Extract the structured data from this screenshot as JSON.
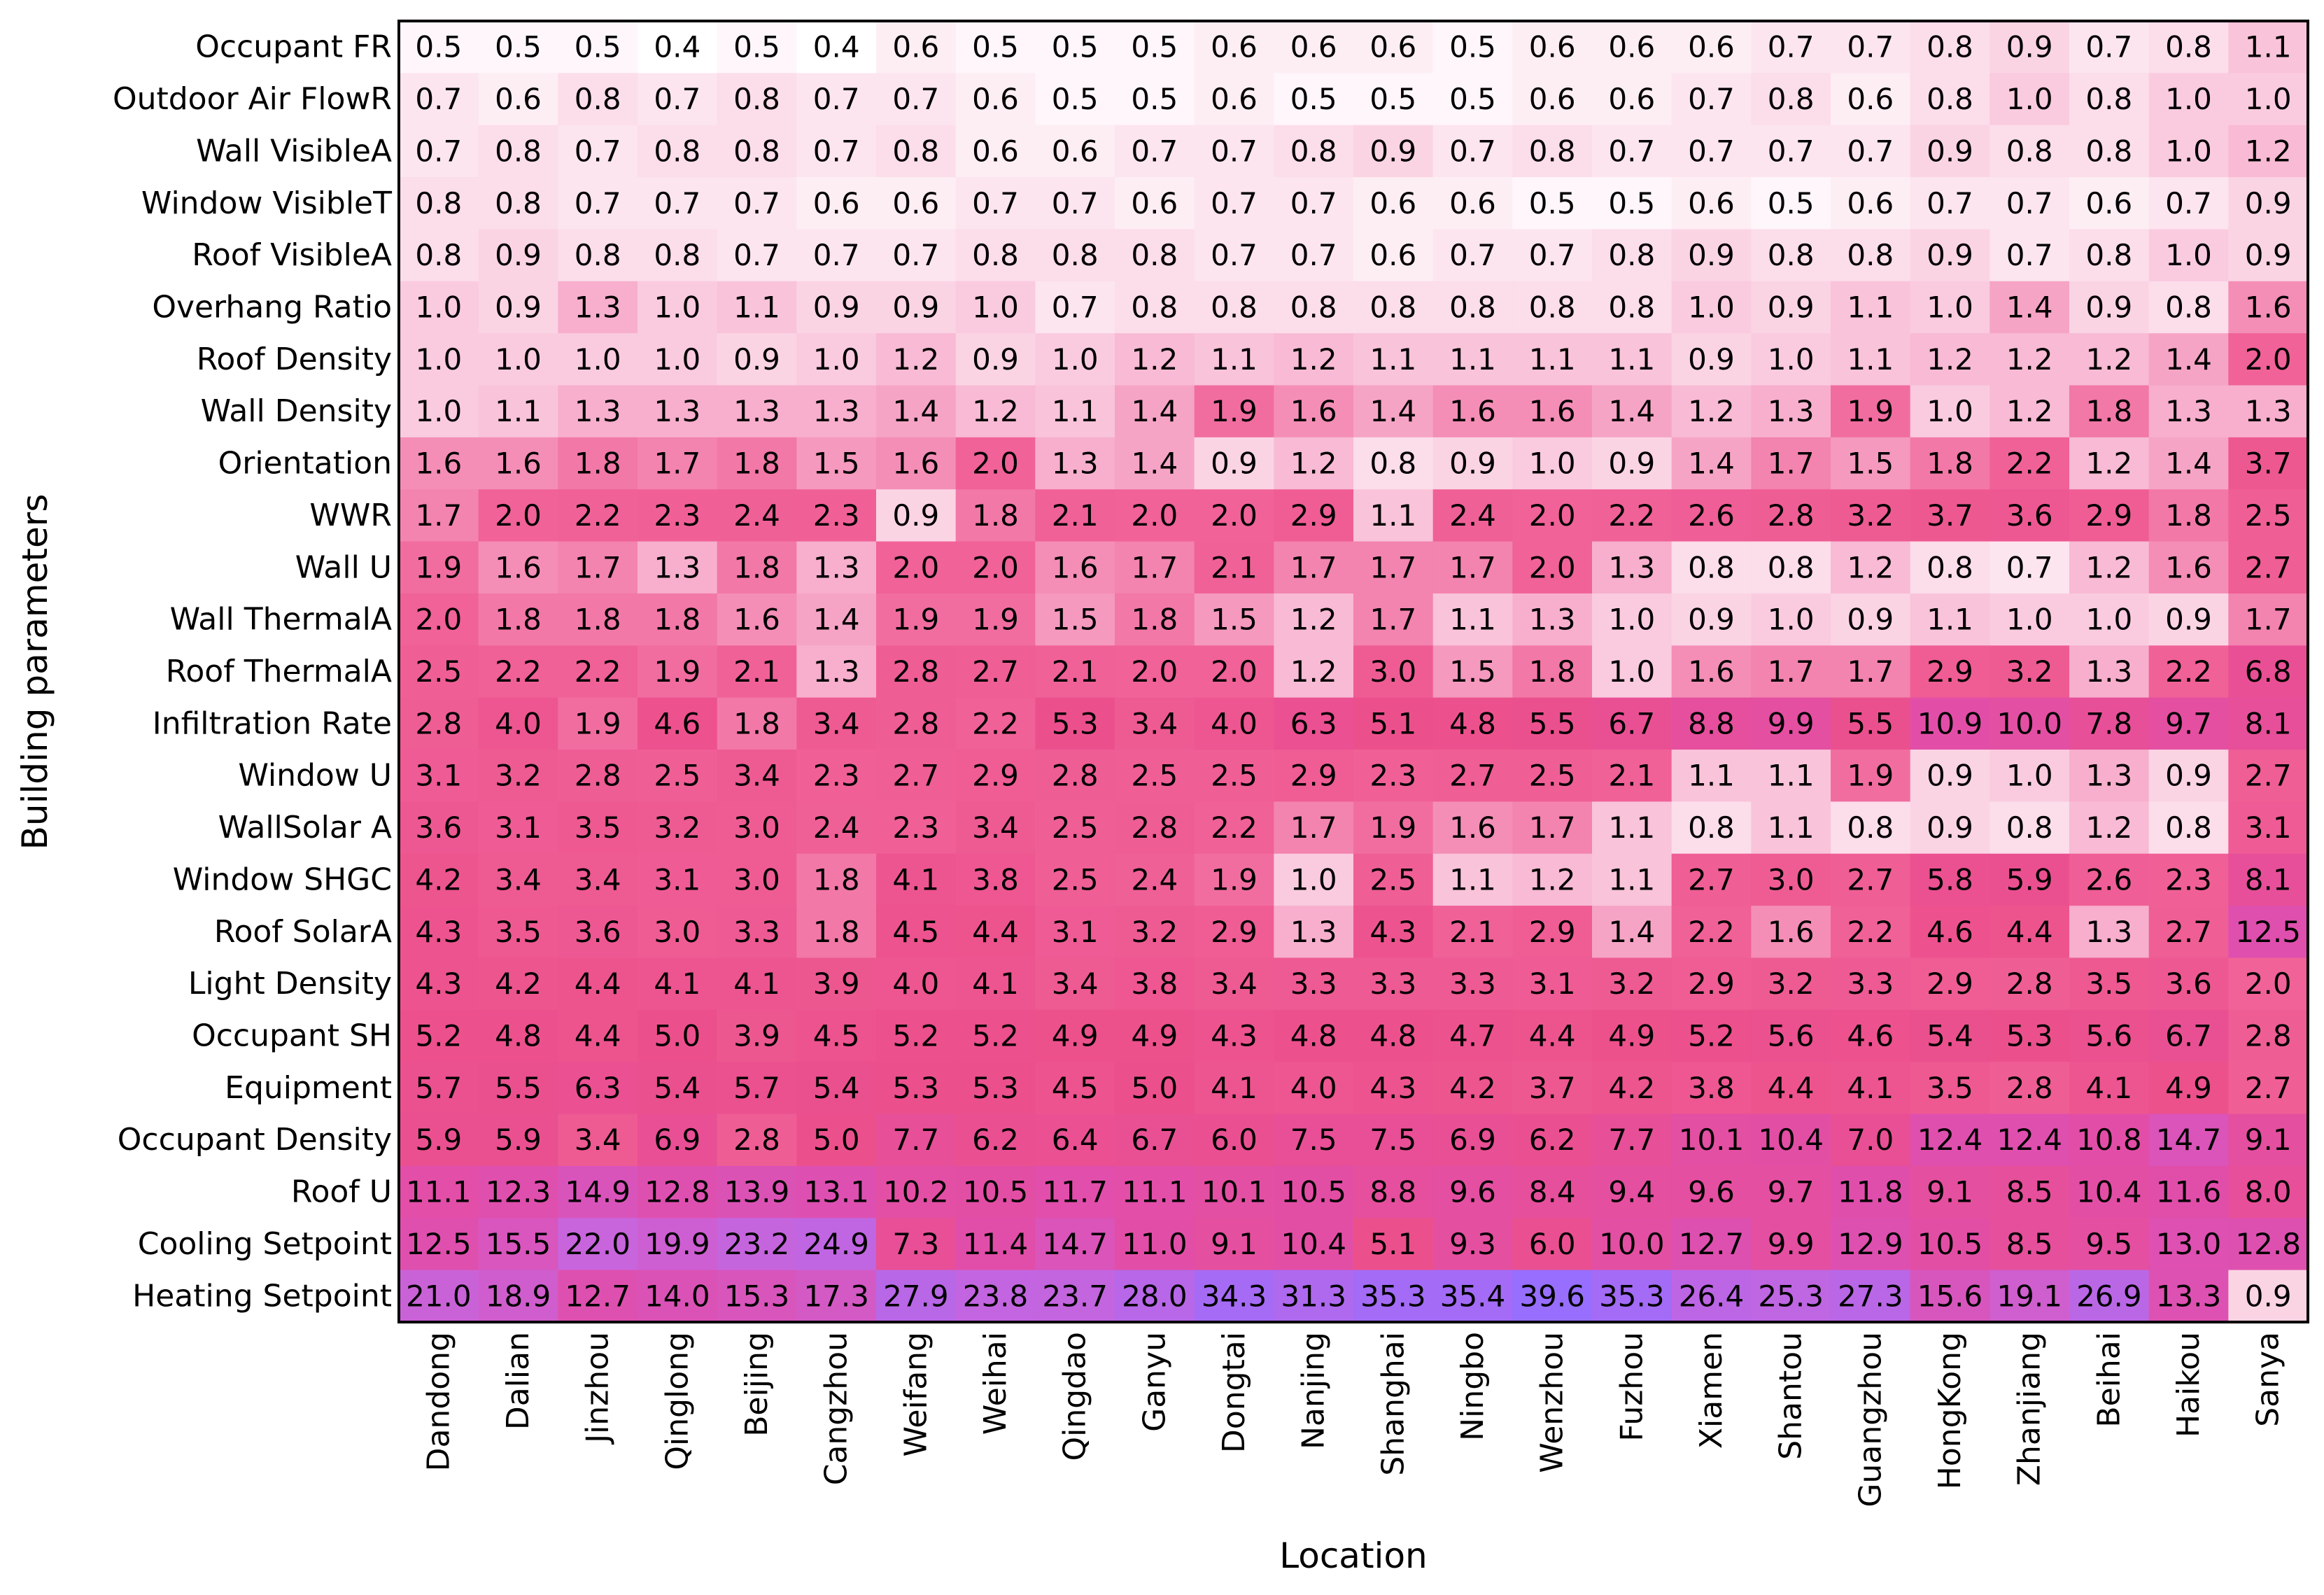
{
  "chart_data": {
    "type": "heatmap",
    "title": "",
    "xlabel": "Location",
    "ylabel": "Building parameters",
    "x_categories": [
      "Dandong",
      "Dalian",
      "Jinzhou",
      "Qinglong",
      "Beijing",
      "Cangzhou",
      "Weifang",
      "Weihai",
      "Qingdao",
      "Ganyu",
      "Dongtai",
      "Nanjing",
      "Shanghai",
      "Ningbo",
      "Wenzhou",
      "Fuzhou",
      "Xiamen",
      "Shantou",
      "Guangzhou",
      "HongKong",
      "Zhanjiang",
      "Beihai",
      "Haikou",
      "Sanya"
    ],
    "y_categories": [
      "Occupant FR",
      "Outdoor Air FlowR",
      "Wall VisibleA",
      "Window VisibleT",
      "Roof VisibleA",
      "Overhang Ratio",
      "Roof Density",
      "Wall Density",
      "Orientation",
      "WWR",
      "Wall U",
      "Wall ThermalA",
      "Roof ThermalA",
      "Infiltration Rate",
      "Window U",
      "WallSolar A",
      "Window SHGC",
      "Roof SolarA",
      "Light Density",
      "Occupant SH",
      "Equipment",
      "Occupant Density",
      "Roof U",
      "Cooling Setpoint",
      "Heating Setpoint"
    ],
    "values": [
      [
        0.5,
        0.5,
        0.5,
        0.4,
        0.5,
        0.4,
        0.6,
        0.5,
        0.5,
        0.5,
        0.6,
        0.6,
        0.6,
        0.5,
        0.6,
        0.6,
        0.6,
        0.7,
        0.7,
        0.8,
        0.9,
        0.7,
        0.8,
        1.1
      ],
      [
        0.7,
        0.6,
        0.8,
        0.7,
        0.8,
        0.7,
        0.7,
        0.6,
        0.5,
        0.5,
        0.6,
        0.5,
        0.5,
        0.5,
        0.6,
        0.6,
        0.7,
        0.8,
        0.6,
        0.8,
        1.0,
        0.8,
        1.0,
        1.0
      ],
      [
        0.7,
        0.8,
        0.7,
        0.8,
        0.8,
        0.7,
        0.8,
        0.6,
        0.6,
        0.7,
        0.7,
        0.8,
        0.9,
        0.7,
        0.8,
        0.7,
        0.7,
        0.7,
        0.7,
        0.9,
        0.8,
        0.8,
        1.0,
        1.2
      ],
      [
        0.8,
        0.8,
        0.7,
        0.7,
        0.7,
        0.6,
        0.6,
        0.7,
        0.7,
        0.6,
        0.7,
        0.7,
        0.6,
        0.6,
        0.5,
        0.5,
        0.6,
        0.5,
        0.6,
        0.7,
        0.7,
        0.6,
        0.7,
        0.9
      ],
      [
        0.8,
        0.9,
        0.8,
        0.8,
        0.7,
        0.7,
        0.7,
        0.8,
        0.8,
        0.8,
        0.7,
        0.7,
        0.6,
        0.7,
        0.7,
        0.8,
        0.9,
        0.8,
        0.8,
        0.9,
        0.7,
        0.8,
        1.0,
        0.9
      ],
      [
        1.0,
        0.9,
        1.3,
        1.0,
        1.1,
        0.9,
        0.9,
        1.0,
        0.7,
        0.8,
        0.8,
        0.8,
        0.8,
        0.8,
        0.8,
        0.8,
        1.0,
        0.9,
        1.1,
        1.0,
        1.4,
        0.9,
        0.8,
        1.6
      ],
      [
        1.0,
        1.0,
        1.0,
        1.0,
        0.9,
        1.0,
        1.2,
        0.9,
        1.0,
        1.2,
        1.1,
        1.2,
        1.1,
        1.1,
        1.1,
        1.1,
        0.9,
        1.0,
        1.1,
        1.2,
        1.2,
        1.2,
        1.4,
        2.0
      ],
      [
        1.0,
        1.1,
        1.3,
        1.3,
        1.3,
        1.3,
        1.4,
        1.2,
        1.1,
        1.4,
        1.9,
        1.6,
        1.4,
        1.6,
        1.6,
        1.4,
        1.2,
        1.3,
        1.9,
        1.0,
        1.2,
        1.8,
        1.3,
        1.3
      ],
      [
        1.6,
        1.6,
        1.8,
        1.7,
        1.8,
        1.5,
        1.6,
        2.0,
        1.3,
        1.4,
        0.9,
        1.2,
        0.8,
        0.9,
        1.0,
        0.9,
        1.4,
        1.7,
        1.5,
        1.8,
        2.2,
        1.2,
        1.4,
        3.7
      ],
      [
        1.7,
        2.0,
        2.2,
        2.3,
        2.4,
        2.3,
        0.9,
        1.8,
        2.1,
        2.0,
        2.0,
        2.9,
        1.1,
        2.4,
        2.0,
        2.2,
        2.6,
        2.8,
        3.2,
        3.7,
        3.6,
        2.9,
        1.8,
        2.5
      ],
      [
        1.9,
        1.6,
        1.7,
        1.3,
        1.8,
        1.3,
        2.0,
        2.0,
        1.6,
        1.7,
        2.1,
        1.7,
        1.7,
        1.7,
        2.0,
        1.3,
        0.8,
        0.8,
        1.2,
        0.8,
        0.7,
        1.2,
        1.6,
        2.7
      ],
      [
        2.0,
        1.8,
        1.8,
        1.8,
        1.6,
        1.4,
        1.9,
        1.9,
        1.5,
        1.8,
        1.5,
        1.2,
        1.7,
        1.1,
        1.3,
        1.0,
        0.9,
        1.0,
        0.9,
        1.1,
        1.0,
        1.0,
        0.9,
        1.7
      ],
      [
        2.5,
        2.2,
        2.2,
        1.9,
        2.1,
        1.3,
        2.8,
        2.7,
        2.1,
        2.0,
        2.0,
        1.2,
        3.0,
        1.5,
        1.8,
        1.0,
        1.6,
        1.7,
        1.7,
        2.9,
        3.2,
        1.3,
        2.2,
        6.8
      ],
      [
        2.8,
        4.0,
        1.9,
        4.6,
        1.8,
        3.4,
        2.8,
        2.2,
        5.3,
        3.4,
        4.0,
        6.3,
        5.1,
        4.8,
        5.5,
        6.7,
        8.8,
        9.9,
        5.5,
        10.9,
        10.0,
        7.8,
        9.7,
        8.1
      ],
      [
        3.1,
        3.2,
        2.8,
        2.5,
        3.4,
        2.3,
        2.7,
        2.9,
        2.8,
        2.5,
        2.5,
        2.9,
        2.3,
        2.7,
        2.5,
        2.1,
        1.1,
        1.1,
        1.9,
        0.9,
        1.0,
        1.3,
        0.9,
        2.7
      ],
      [
        3.6,
        3.1,
        3.5,
        3.2,
        3.0,
        2.4,
        2.3,
        3.4,
        2.5,
        2.8,
        2.2,
        1.7,
        1.9,
        1.6,
        1.7,
        1.1,
        0.8,
        1.1,
        0.8,
        0.9,
        0.8,
        1.2,
        0.8,
        3.1
      ],
      [
        4.2,
        3.4,
        3.4,
        3.1,
        3.0,
        1.8,
        4.1,
        3.8,
        2.5,
        2.4,
        1.9,
        1.0,
        2.5,
        1.1,
        1.2,
        1.1,
        2.7,
        3.0,
        2.7,
        5.8,
        5.9,
        2.6,
        2.3,
        8.1
      ],
      [
        4.3,
        3.5,
        3.6,
        3.0,
        3.3,
        1.8,
        4.5,
        4.4,
        3.1,
        3.2,
        2.9,
        1.3,
        4.3,
        2.1,
        2.9,
        1.4,
        2.2,
        1.6,
        2.2,
        4.6,
        4.4,
        1.3,
        2.7,
        12.5
      ],
      [
        4.3,
        4.2,
        4.4,
        4.1,
        4.1,
        3.9,
        4.0,
        4.1,
        3.4,
        3.8,
        3.4,
        3.3,
        3.3,
        3.3,
        3.1,
        3.2,
        2.9,
        3.2,
        3.3,
        2.9,
        2.8,
        3.5,
        3.6,
        2.0
      ],
      [
        5.2,
        4.8,
        4.4,
        5.0,
        3.9,
        4.5,
        5.2,
        5.2,
        4.9,
        4.9,
        4.3,
        4.8,
        4.8,
        4.7,
        4.4,
        4.9,
        5.2,
        5.6,
        4.6,
        5.4,
        5.3,
        5.6,
        6.7,
        2.8
      ],
      [
        5.7,
        5.5,
        6.3,
        5.4,
        5.7,
        5.4,
        5.3,
        5.3,
        4.5,
        5.0,
        4.1,
        4.0,
        4.3,
        4.2,
        3.7,
        4.2,
        3.8,
        4.4,
        4.1,
        3.5,
        2.8,
        4.1,
        4.9,
        2.7
      ],
      [
        5.9,
        5.9,
        3.4,
        6.9,
        2.8,
        5.0,
        7.7,
        6.2,
        6.4,
        6.7,
        6.0,
        7.5,
        7.5,
        6.9,
        6.2,
        7.7,
        10.1,
        10.4,
        7.0,
        12.4,
        12.4,
        10.8,
        14.7,
        9.1
      ],
      [
        11.1,
        12.3,
        14.9,
        12.8,
        13.9,
        13.1,
        10.2,
        10.5,
        11.7,
        11.1,
        10.1,
        10.5,
        8.8,
        9.6,
        8.4,
        9.4,
        9.6,
        9.7,
        11.8,
        9.1,
        8.5,
        10.4,
        11.6,
        8.0
      ],
      [
        12.5,
        15.5,
        22.0,
        19.9,
        23.2,
        24.9,
        7.3,
        11.4,
        14.7,
        11.0,
        9.1,
        10.4,
        5.1,
        9.3,
        6.0,
        10.0,
        12.7,
        9.9,
        12.9,
        10.5,
        8.5,
        9.5,
        13.0,
        12.8
      ],
      [
        21.0,
        18.9,
        12.7,
        14.0,
        15.3,
        17.3,
        27.9,
        23.8,
        23.7,
        28.0,
        34.3,
        31.3,
        35.3,
        35.4,
        39.6,
        35.3,
        26.4,
        25.3,
        27.3,
        15.6,
        19.1,
        26.9,
        13.3,
        0.9
      ]
    ],
    "grid": false,
    "legend": "none"
  }
}
